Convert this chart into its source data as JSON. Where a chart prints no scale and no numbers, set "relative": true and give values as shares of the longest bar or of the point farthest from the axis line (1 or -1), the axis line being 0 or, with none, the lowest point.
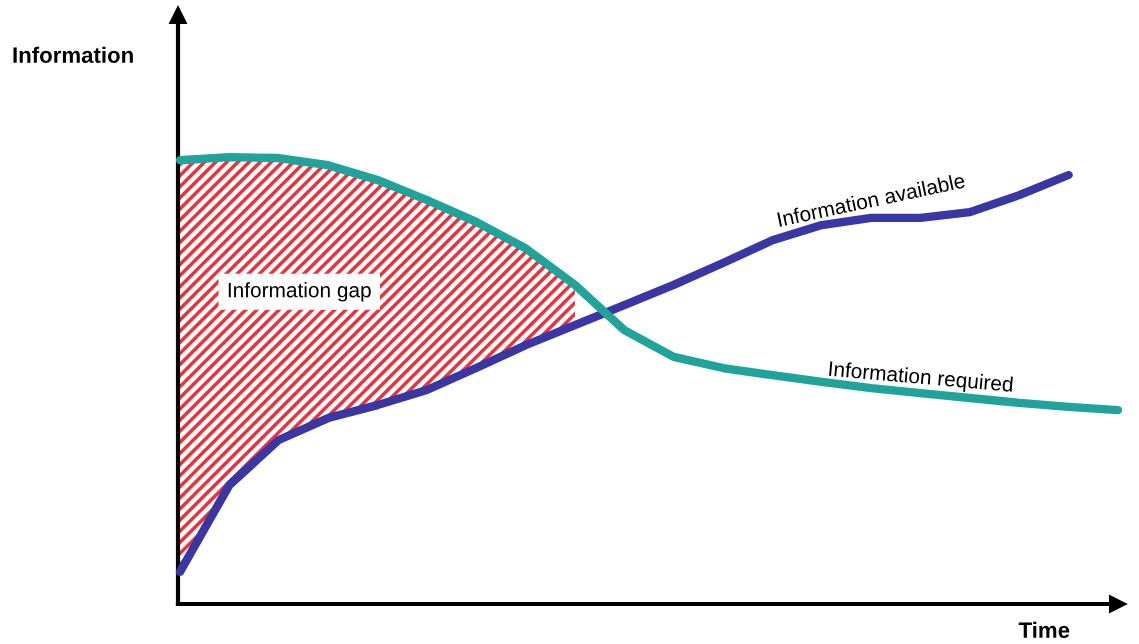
{
  "chart_data": {
    "type": "line",
    "relative": true,
    "xlabel": "Time",
    "ylabel": "Information",
    "categories": [
      null,
      null,
      null,
      null,
      null,
      null,
      null,
      null,
      null,
      null,
      null,
      null,
      null,
      null,
      null,
      null,
      null,
      null,
      null,
      null
    ],
    "series": [
      {
        "name": "Information available",
        "color": "#3a36a3",
        "values": [
          0.072,
          0.266,
          0.367,
          0.416,
          0.445,
          0.479,
          0.528,
          0.579,
          0.624,
          0.669,
          0.714,
          0.763,
          0.814,
          0.848,
          0.864,
          0.864,
          0.877,
          0.915,
          0.96,
          null
        ]
      },
      {
        "name": "Information required",
        "color": "#1fa39b",
        "values": [
          0.993,
          1.0,
          0.998,
          0.982,
          0.949,
          0.904,
          0.855,
          0.796,
          0.714,
          0.613,
          0.553,
          0.528,
          0.512,
          0.497,
          0.483,
          0.472,
          0.461,
          0.45,
          0.441,
          0.434
        ],
        "lower": [
          0.072,
          0.266,
          0.367,
          0.416,
          0.445,
          0.479,
          0.528,
          0.579,
          0.624,
          null,
          null,
          null,
          null,
          null,
          null,
          null,
          null,
          null,
          null,
          null
        ],
        "upper": [
          0.993,
          1.0,
          0.998,
          0.982,
          0.949,
          0.904,
          0.855,
          0.796,
          0.714,
          null,
          null,
          null,
          null,
          null,
          null,
          null,
          null,
          null,
          null,
          null
        ]
      }
    ],
    "annotations": [
      "Information gap"
    ]
  }
}
